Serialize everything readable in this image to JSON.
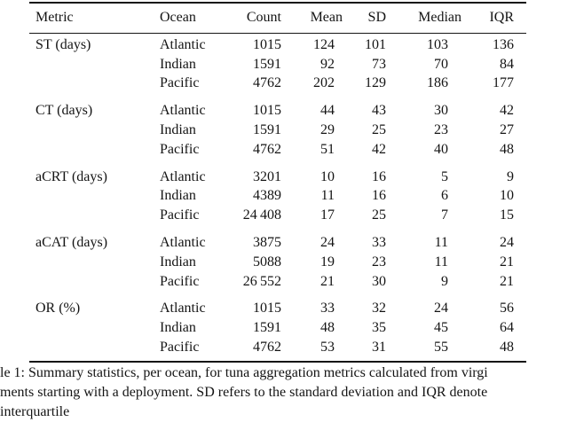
{
  "table": {
    "columns": [
      {
        "key": "metric",
        "label": "Metric"
      },
      {
        "key": "ocean",
        "label": "Ocean"
      },
      {
        "key": "count",
        "label": "Count"
      },
      {
        "key": "mean",
        "label": "Mean"
      },
      {
        "key": "sd",
        "label": "SD"
      },
      {
        "key": "median",
        "label": "Median"
      },
      {
        "key": "iqr",
        "label": "IQR"
      }
    ],
    "groups": [
      {
        "metric": "ST (days)",
        "rows": [
          {
            "ocean": "Atlantic",
            "count": "1015",
            "mean": "124",
            "sd": "101",
            "median": "103",
            "iqr": "136"
          },
          {
            "ocean": "Indian",
            "count": "1591",
            "mean": "92",
            "sd": "73",
            "median": "70",
            "iqr": "84"
          },
          {
            "ocean": "Pacific",
            "count": "4762",
            "mean": "202",
            "sd": "129",
            "median": "186",
            "iqr": "177"
          }
        ]
      },
      {
        "metric": "CT (days)",
        "rows": [
          {
            "ocean": "Atlantic",
            "count": "1015",
            "mean": "44",
            "sd": "43",
            "median": "30",
            "iqr": "42"
          },
          {
            "ocean": "Indian",
            "count": "1591",
            "mean": "29",
            "sd": "25",
            "median": "23",
            "iqr": "27"
          },
          {
            "ocean": "Pacific",
            "count": "4762",
            "mean": "51",
            "sd": "42",
            "median": "40",
            "iqr": "48"
          }
        ]
      },
      {
        "metric": "aCRT (days)",
        "rows": [
          {
            "ocean": "Atlantic",
            "count": "3201",
            "mean": "10",
            "sd": "16",
            "median": "5",
            "iqr": "9"
          },
          {
            "ocean": "Indian",
            "count": "4389",
            "mean": "11",
            "sd": "16",
            "median": "6",
            "iqr": "10"
          },
          {
            "ocean": "Pacific",
            "count": "24 408",
            "mean": "17",
            "sd": "25",
            "median": "7",
            "iqr": "15"
          }
        ]
      },
      {
        "metric": "aCAT (days)",
        "rows": [
          {
            "ocean": "Atlantic",
            "count": "3875",
            "mean": "24",
            "sd": "33",
            "median": "11",
            "iqr": "24"
          },
          {
            "ocean": "Indian",
            "count": "5088",
            "mean": "19",
            "sd": "23",
            "median": "11",
            "iqr": "21"
          },
          {
            "ocean": "Pacific",
            "count": "26 552",
            "mean": "21",
            "sd": "30",
            "median": "9",
            "iqr": "21"
          }
        ]
      },
      {
        "metric": "OR (%)",
        "rows": [
          {
            "ocean": "Atlantic",
            "count": "1015",
            "mean": "33",
            "sd": "32",
            "median": "24",
            "iqr": "56"
          },
          {
            "ocean": "Indian",
            "count": "1591",
            "mean": "48",
            "sd": "35",
            "median": "45",
            "iqr": "64"
          },
          {
            "ocean": "Pacific",
            "count": "4762",
            "mean": "53",
            "sd": "31",
            "median": "55",
            "iqr": "48"
          }
        ]
      }
    ]
  },
  "caption": {
    "lines": [
      "le 1: Summary statistics, per ocean, for tuna aggregation metrics calculated from virgi",
      "ments starting with a deployment. SD refers to the standard deviation and IQR denote",
      "interquartile"
    ]
  }
}
